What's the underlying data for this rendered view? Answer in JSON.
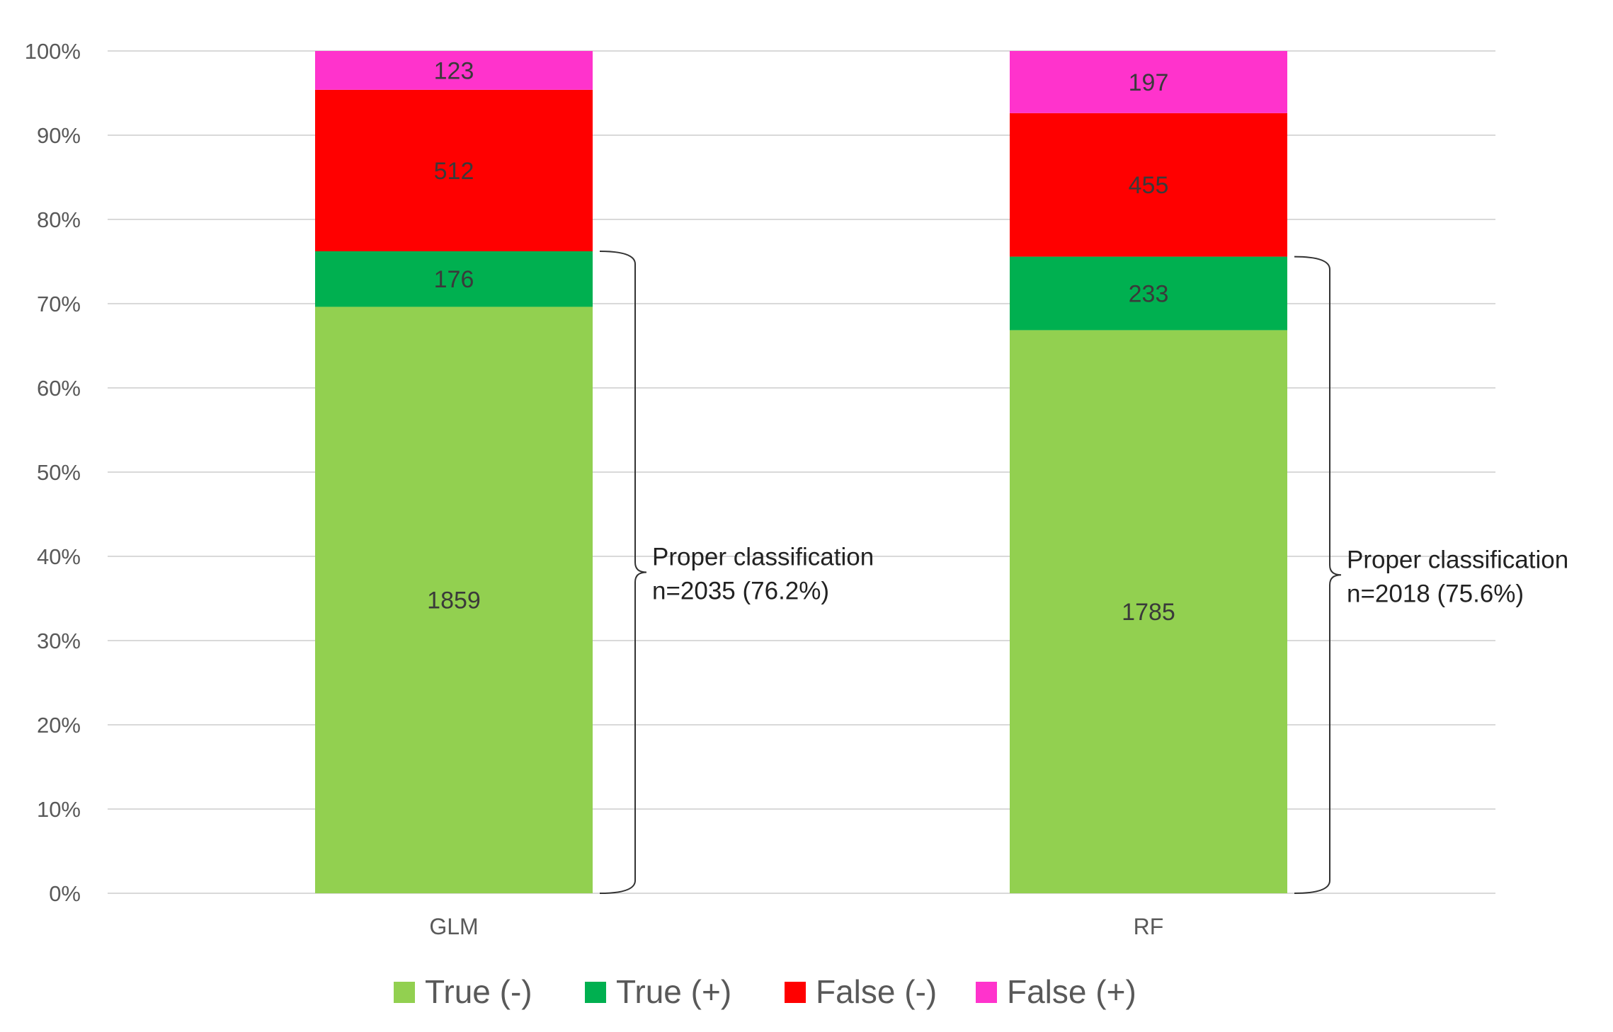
{
  "chart_data": {
    "type": "bar",
    "stacked": true,
    "normalized": true,
    "categories": [
      "GLM",
      "RF"
    ],
    "series": [
      {
        "name": "True (-)",
        "color": "#92d050",
        "values": [
          1859,
          1785
        ]
      },
      {
        "name": "True (+)",
        "color": "#00b050",
        "values": [
          176,
          233
        ]
      },
      {
        "name": "False (-)",
        "color": "#ff0000",
        "values": [
          512,
          455
        ]
      },
      {
        "name": "False (+)",
        "color": "#ff33cc",
        "values": [
          123,
          197
        ]
      }
    ],
    "title": "",
    "xlabel": "",
    "ylabel": "",
    "ylim": [
      0,
      100
    ],
    "yticks": [
      "0%",
      "10%",
      "20%",
      "30%",
      "40%",
      "50%",
      "60%",
      "70%",
      "80%",
      "90%",
      "100%"
    ],
    "grid": true,
    "legend": "bottom",
    "annotations": [
      {
        "category": "GLM",
        "line1": "Proper classification",
        "line2": "n=2035 (76.2%)",
        "spans_series": [
          "True (-)",
          "True (+)"
        ]
      },
      {
        "category": "RF",
        "line1": "Proper classification",
        "line2": "n=2018 (75.6%)",
        "spans_series": [
          "True (-)",
          "True (+)"
        ]
      }
    ]
  }
}
